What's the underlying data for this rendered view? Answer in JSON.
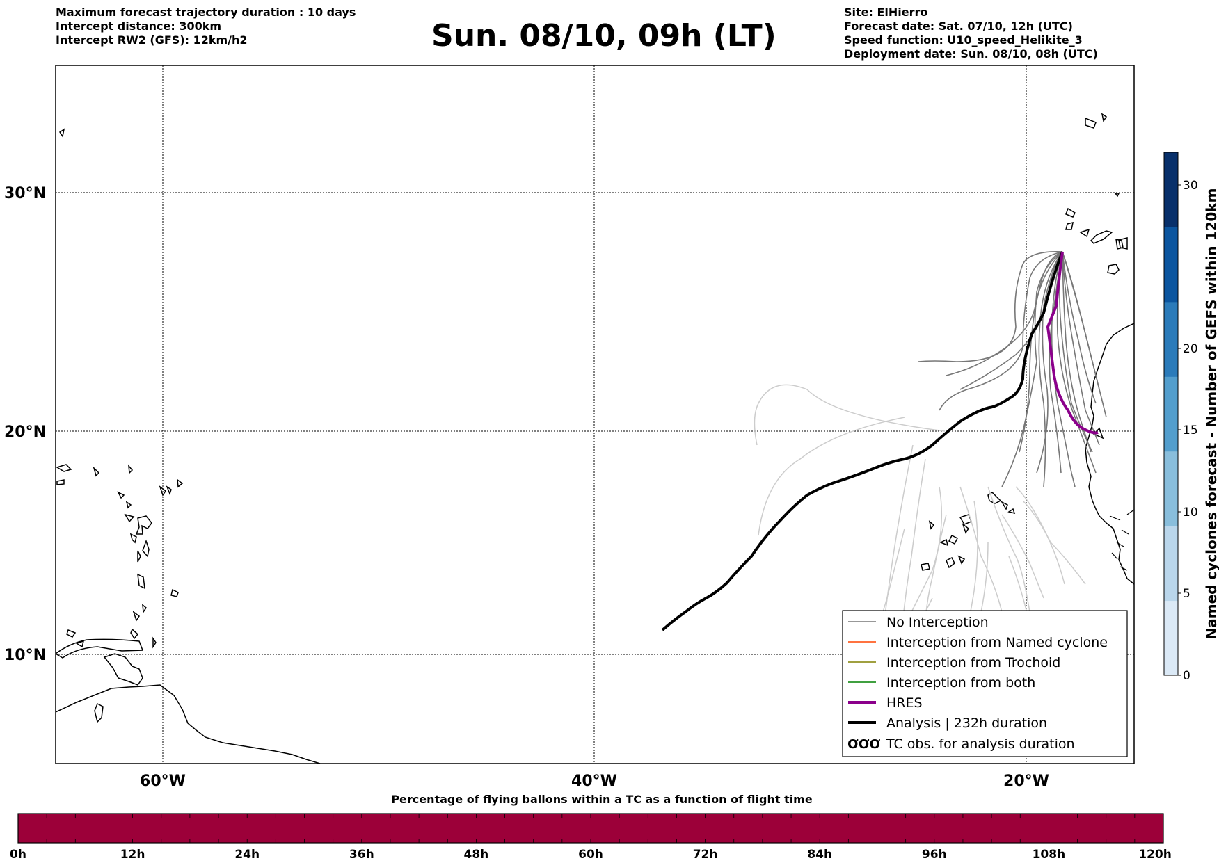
{
  "header": {
    "left_lines": [
      "Maximum forecast trajectory duration : 10 days",
      "Intercept distance: 300km",
      "Intercept RW2 (GFS):  12km/h2"
    ],
    "title": "Sun. 08/10, 09h (LT)",
    "right_lines": [
      "Site: ElHierro",
      "Forecast date: Sat. 07/10, 12h (UTC)",
      "Speed function: U10_speed_Helikite_3",
      "Deployment date: Sun. 08/10, 08h (UTC)"
    ]
  },
  "map": {
    "lon_range": [
      -65,
      -15
    ],
    "lat_range": [
      5,
      35
    ],
    "lon_ticks": [
      "60°W",
      "40°W",
      "20°W"
    ],
    "lat_ticks": [
      "30°N",
      "20°N",
      "10°N"
    ]
  },
  "legend": {
    "items": [
      {
        "label": "No Interception",
        "color": "#777777"
      },
      {
        "label": "Interception from Named cyclone",
        "color": "#ff4500"
      },
      {
        "label": "Interception from Trochoid",
        "color": "#808000"
      },
      {
        "label": "Interception from both",
        "color": "#008000"
      },
      {
        "label": "HRES",
        "color": "#8b008b"
      },
      {
        "label": "Analysis | 232h duration",
        "color": "#000000"
      },
      {
        "label": "TC obs. for analysis duration",
        "color": "#000000",
        "symbol": "ƠƠƠ"
      }
    ]
  },
  "colorbar": {
    "label": "Named cyclones forecast - Number of GEFS within 120km",
    "ticks": [
      "0",
      "5",
      "10",
      "15",
      "20",
      "30"
    ],
    "range": [
      0,
      32
    ],
    "colors": [
      "#dbe9f6",
      "#bad6eb",
      "#89bedc",
      "#539ecd",
      "#2b7bba",
      "#0b559f",
      "#08306b"
    ]
  },
  "pct_bar": {
    "title": "Percentage of flying ballons within a TC as a function of flight time",
    "ticks": [
      "0h",
      "12h",
      "24h",
      "36h",
      "48h",
      "60h",
      "72h",
      "84h",
      "96h",
      "108h",
      "120h"
    ],
    "color": "#9c0039"
  }
}
